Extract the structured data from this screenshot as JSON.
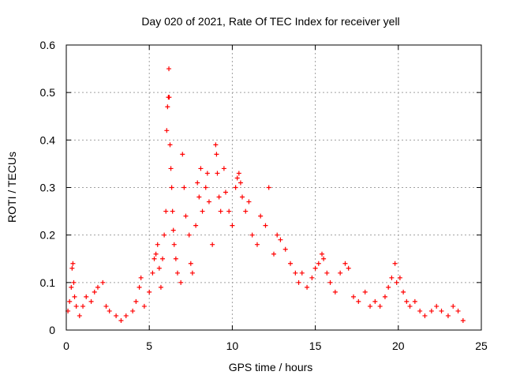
{
  "chart_data": {
    "type": "scatter",
    "title": "Day 020 of 2021, Rate Of TEC Index for receiver yell",
    "xlabel": "GPS time / hours",
    "ylabel": "ROTI / TECUs",
    "xlim": [
      0,
      25
    ],
    "ylim": [
      0,
      0.6
    ],
    "x_ticks": [
      0,
      5,
      10,
      15,
      20,
      25
    ],
    "x_tick_labels": [
      "0",
      "5",
      "10",
      "15",
      "20",
      "25"
    ],
    "y_ticks": [
      0,
      0.1,
      0.2,
      0.3,
      0.4,
      0.5,
      0.6
    ],
    "y_tick_labels": [
      "0",
      "0.1",
      "0.2",
      "0.3",
      "0.4",
      "0.5",
      "0.6"
    ],
    "grid": true,
    "marker": "+",
    "marker_color": "#ff0000",
    "series": [
      {
        "points": [
          [
            0.1,
            0.04
          ],
          [
            0.2,
            0.06
          ],
          [
            0.3,
            0.09
          ],
          [
            0.35,
            0.13
          ],
          [
            0.4,
            0.14
          ],
          [
            0.45,
            0.1
          ],
          [
            0.5,
            0.07
          ],
          [
            0.6,
            0.05
          ],
          [
            0.8,
            0.03
          ],
          [
            1.0,
            0.05
          ],
          [
            1.2,
            0.07
          ],
          [
            1.5,
            0.06
          ],
          [
            1.7,
            0.08
          ],
          [
            1.9,
            0.09
          ],
          [
            2.2,
            0.1
          ],
          [
            2.4,
            0.05
          ],
          [
            2.6,
            0.04
          ],
          [
            3.0,
            0.03
          ],
          [
            3.3,
            0.02
          ],
          [
            3.6,
            0.03
          ],
          [
            4.0,
            0.04
          ],
          [
            4.2,
            0.06
          ],
          [
            4.4,
            0.09
          ],
          [
            4.5,
            0.11
          ],
          [
            4.7,
            0.05
          ],
          [
            5.0,
            0.08
          ],
          [
            5.2,
            0.12
          ],
          [
            5.3,
            0.15
          ],
          [
            5.4,
            0.16
          ],
          [
            5.5,
            0.18
          ],
          [
            5.6,
            0.13
          ],
          [
            5.7,
            0.09
          ],
          [
            5.8,
            0.15
          ],
          [
            5.9,
            0.2
          ],
          [
            6.0,
            0.25
          ],
          [
            6.05,
            0.42
          ],
          [
            6.1,
            0.47
          ],
          [
            6.15,
            0.49
          ],
          [
            6.18,
            0.55
          ],
          [
            6.2,
            0.49
          ],
          [
            6.25,
            0.39
          ],
          [
            6.3,
            0.34
          ],
          [
            6.35,
            0.3
          ],
          [
            6.4,
            0.25
          ],
          [
            6.45,
            0.21
          ],
          [
            6.5,
            0.18
          ],
          [
            6.6,
            0.15
          ],
          [
            6.7,
            0.12
          ],
          [
            6.9,
            0.1
          ],
          [
            7.0,
            0.37
          ],
          [
            7.1,
            0.3
          ],
          [
            7.2,
            0.24
          ],
          [
            7.4,
            0.2
          ],
          [
            7.5,
            0.14
          ],
          [
            7.6,
            0.12
          ],
          [
            7.8,
            0.22
          ],
          [
            7.9,
            0.31
          ],
          [
            8.0,
            0.28
          ],
          [
            8.1,
            0.34
          ],
          [
            8.2,
            0.25
          ],
          [
            8.4,
            0.3
          ],
          [
            8.5,
            0.33
          ],
          [
            8.6,
            0.27
          ],
          [
            8.8,
            0.18
          ],
          [
            9.0,
            0.39
          ],
          [
            9.05,
            0.37
          ],
          [
            9.1,
            0.33
          ],
          [
            9.2,
            0.28
          ],
          [
            9.3,
            0.25
          ],
          [
            9.5,
            0.34
          ],
          [
            9.6,
            0.29
          ],
          [
            9.8,
            0.25
          ],
          [
            10.0,
            0.22
          ],
          [
            10.2,
            0.3
          ],
          [
            10.3,
            0.32
          ],
          [
            10.4,
            0.33
          ],
          [
            10.5,
            0.31
          ],
          [
            10.6,
            0.28
          ],
          [
            10.8,
            0.25
          ],
          [
            11.0,
            0.27
          ],
          [
            11.2,
            0.2
          ],
          [
            11.5,
            0.18
          ],
          [
            11.7,
            0.24
          ],
          [
            12.0,
            0.22
          ],
          [
            12.2,
            0.3
          ],
          [
            12.5,
            0.16
          ],
          [
            12.7,
            0.2
          ],
          [
            12.9,
            0.19
          ],
          [
            13.2,
            0.17
          ],
          [
            13.5,
            0.14
          ],
          [
            13.8,
            0.12
          ],
          [
            14.0,
            0.1
          ],
          [
            14.2,
            0.12
          ],
          [
            14.5,
            0.09
          ],
          [
            14.8,
            0.11
          ],
          [
            15.0,
            0.13
          ],
          [
            15.2,
            0.14
          ],
          [
            15.4,
            0.16
          ],
          [
            15.5,
            0.15
          ],
          [
            15.7,
            0.12
          ],
          [
            15.9,
            0.1
          ],
          [
            16.2,
            0.08
          ],
          [
            16.5,
            0.12
          ],
          [
            16.8,
            0.14
          ],
          [
            17.0,
            0.13
          ],
          [
            17.3,
            0.07
          ],
          [
            17.6,
            0.06
          ],
          [
            18.0,
            0.08
          ],
          [
            18.3,
            0.05
          ],
          [
            18.6,
            0.06
          ],
          [
            18.9,
            0.05
          ],
          [
            19.2,
            0.07
          ],
          [
            19.4,
            0.09
          ],
          [
            19.6,
            0.11
          ],
          [
            19.8,
            0.14
          ],
          [
            19.9,
            0.1
          ],
          [
            20.1,
            0.11
          ],
          [
            20.3,
            0.08
          ],
          [
            20.5,
            0.06
          ],
          [
            20.7,
            0.05
          ],
          [
            21.0,
            0.06
          ],
          [
            21.3,
            0.04
          ],
          [
            21.6,
            0.03
          ],
          [
            22.0,
            0.04
          ],
          [
            22.3,
            0.05
          ],
          [
            22.6,
            0.04
          ],
          [
            23.0,
            0.03
          ],
          [
            23.3,
            0.05
          ],
          [
            23.6,
            0.04
          ],
          [
            23.9,
            0.02
          ]
        ]
      }
    ]
  }
}
